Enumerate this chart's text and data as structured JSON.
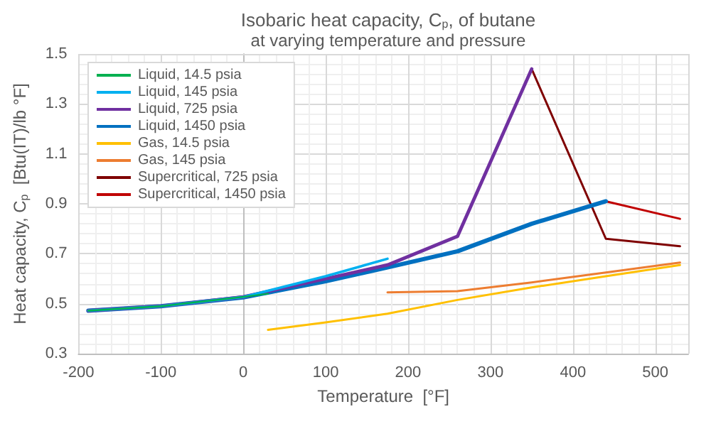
{
  "chart_data": {
    "type": "line",
    "title": "Isobaric heat capacity, C$_{p}$, of butane",
    "subtitle": "at varying temperature and pressure",
    "xlabel": "Temperature  [°F]",
    "ylabel": "Heat capacity, C$_{p}$  [Btu(IT)/lb °F]",
    "xlim": [
      -200,
      540
    ],
    "xticks": [
      -200,
      -100,
      0,
      100,
      200,
      300,
      400,
      500
    ],
    "ylim": [
      0.3,
      1.5
    ],
    "yticks": [
      0.3,
      0.5,
      0.7,
      0.9,
      1.1,
      1.3,
      1.5
    ],
    "grid": true,
    "legend": "top left",
    "marker": "none",
    "line_style": "solid",
    "series": [
      {
        "name": "Liquid, 14.5 psia",
        "color": "#00b050",
        "x": [
          -188,
          -100,
          0,
          30
        ],
        "values": [
          0.472,
          0.49,
          0.527,
          0.54
        ]
      },
      {
        "name": "Liquid, 145 psia",
        "color": "#00b0f0",
        "x": [
          -188,
          -100,
          0,
          100,
          175
        ],
        "values": [
          0.472,
          0.49,
          0.527,
          0.61,
          0.68
        ]
      },
      {
        "name": "Liquid, 725 psia",
        "color": "#7030a0",
        "x": [
          -188,
          -100,
          0,
          100,
          175,
          260,
          350
        ],
        "values": [
          0.472,
          0.49,
          0.527,
          0.6,
          0.655,
          0.77,
          1.44
        ]
      },
      {
        "name": "Liquid, 1450 psia",
        "color": "#0070c0",
        "x": [
          -188,
          -100,
          0,
          100,
          175,
          260,
          350,
          440
        ],
        "values": [
          0.472,
          0.49,
          0.525,
          0.59,
          0.645,
          0.71,
          0.82,
          0.91
        ]
      },
      {
        "name": "Gas, 14.5 psia",
        "color": "#ffc000",
        "x": [
          30,
          100,
          175,
          260,
          350,
          440,
          530
        ],
        "values": [
          0.395,
          0.425,
          0.46,
          0.515,
          0.565,
          0.61,
          0.655
        ]
      },
      {
        "name": "Gas, 145 psia",
        "color": "#ed7d31",
        "x": [
          175,
          260,
          350,
          440,
          530
        ],
        "values": [
          0.545,
          0.55,
          0.585,
          0.625,
          0.665
        ]
      },
      {
        "name": "Supercritical, 725 psia",
        "color": "#7f0000",
        "x": [
          350,
          440,
          530
        ],
        "values": [
          1.44,
          0.76,
          0.73
        ]
      },
      {
        "name": "Supercritical, 1450 psia",
        "color": "#c00000",
        "x": [
          440,
          530
        ],
        "values": [
          0.91,
          0.84
        ]
      }
    ]
  }
}
